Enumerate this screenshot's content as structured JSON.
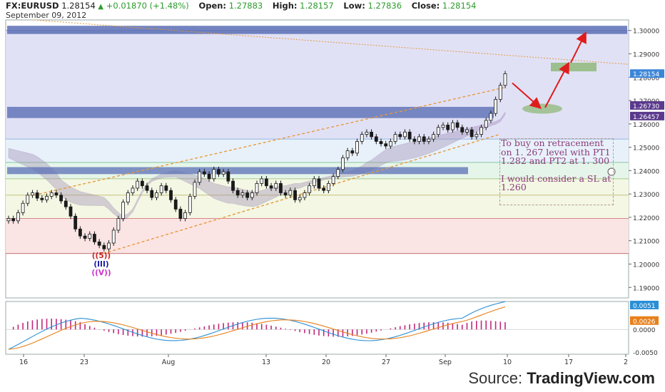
{
  "header": {
    "symbol": "FX:EURUSD",
    "price": "1.28154",
    "change_arrow": "▲",
    "change": "+0.01870 (+1.48%)",
    "open_label": "Open:",
    "open": "1.27883",
    "high_label": "High:",
    "high": "1.28157",
    "low_label": "Low:",
    "low": "1.27836",
    "close_label": "Close:",
    "close": "1.28154",
    "date": "September 09, 2012"
  },
  "annotation": {
    "line1": "To buy on retracement on 1. 267 level with PT1 1.282 and PT2 at 1. 300",
    "line2": "I would consider a SL at 1.260"
  },
  "wave_labels": [
    {
      "text": "((5))",
      "color": "#cc2222"
    },
    {
      "text": "(III)",
      "color": "#1a1aa8"
    },
    {
      "text": "((V))",
      "color": "#cc33cc"
    }
  ],
  "source": {
    "prefix": "Source:",
    "brand": "TradingView.com"
  },
  "colors": {
    "up_candle": "#1a1a1a",
    "blue_zone": "#5b6fb5",
    "green_zone": "#8fb87a",
    "macd_line": "#2a8fd6",
    "signal_line": "#e8801a",
    "hist": "#c0287a",
    "cloud": "#9c8ab0",
    "trend": "#e69a3c",
    "arrow": "#e01c1c"
  },
  "chart_data": {
    "type": "candlestick",
    "title": "",
    "xlabel": "",
    "ylabel": "",
    "ylim": [
      1.1855,
      1.3045
    ],
    "yticks": [
      1.19,
      1.2,
      1.21,
      1.22,
      1.23,
      1.24,
      1.25,
      1.26,
      1.27,
      1.28,
      1.29,
      1.3
    ],
    "ytick_labels": [
      "1.19000",
      "1.20000",
      "1.21000",
      "1.22000",
      "1.23000",
      "1.24000",
      "1.25000",
      "1.26000",
      "1.27000",
      "1.28000",
      "1.29000",
      "1.30000"
    ],
    "xtick_labels": [
      "16",
      "23",
      "Aug",
      "13",
      "20",
      "27",
      "Sep",
      "10",
      "17",
      "2"
    ],
    "price_tags": [
      {
        "value": 1.28154,
        "label": "1.28154",
        "color": "#3c86d8"
      },
      {
        "value": 1.2673,
        "label": "1.26730",
        "color": "#5a3a8c"
      },
      {
        "value": 1.26457,
        "label": "1.26457",
        "color": "#5a3a8c"
      }
    ],
    "close_series": [
      1.2195,
      1.2185,
      1.222,
      1.226,
      1.2295,
      1.2305,
      1.2282,
      1.2275,
      1.229,
      1.2305,
      1.2295,
      1.227,
      1.2245,
      1.2205,
      1.215,
      1.212,
      1.211,
      1.2128,
      1.2095,
      1.208,
      1.2065,
      1.209,
      1.2145,
      1.2195,
      1.2265,
      1.2305,
      1.2325,
      1.2355,
      1.2335,
      1.2315,
      1.2285,
      1.2305,
      1.2335,
      1.2315,
      1.2275,
      1.2235,
      1.2195,
      1.222,
      1.229,
      1.235,
      1.2395,
      1.2385,
      1.2365,
      1.2405,
      1.2385,
      1.2395,
      1.2355,
      1.2315,
      1.2295,
      1.2305,
      1.2285,
      1.2305,
      1.2345,
      1.2365,
      1.2335,
      1.2325,
      1.2345,
      1.2305,
      1.2295,
      1.2315,
      1.2275,
      1.2285,
      1.2305,
      1.2335,
      1.2365,
      1.2325,
      1.2315,
      1.2345,
      1.2375,
      1.2405,
      1.2455,
      1.2485,
      1.2475,
      1.2525,
      1.2555,
      1.2565,
      1.2545,
      1.2525,
      1.2515,
      1.2505,
      1.2525,
      1.2555,
      1.2545,
      1.2565,
      1.2535,
      1.2525,
      1.2545,
      1.2525,
      1.2535,
      1.2555,
      1.2585,
      1.2595,
      1.2575,
      1.2605,
      1.2585,
      1.2565,
      1.2575,
      1.2545,
      1.2555,
      1.2585,
      1.2615,
      1.2645,
      1.2705,
      1.2765,
      1.2815
    ],
    "macd": {
      "ylim": [
        -0.0055,
        0.0062
      ],
      "yticks": [
        0.0,
        -0.005
      ],
      "ytick_labels": [
        "0.0000",
        "-0.0050"
      ],
      "tags": [
        {
          "value": 0.0051,
          "label": "0.0051",
          "color": "#2a8fd6"
        },
        {
          "value": 0.0026,
          "label": "0.0026",
          "color": "#e8801a"
        }
      ]
    }
  }
}
